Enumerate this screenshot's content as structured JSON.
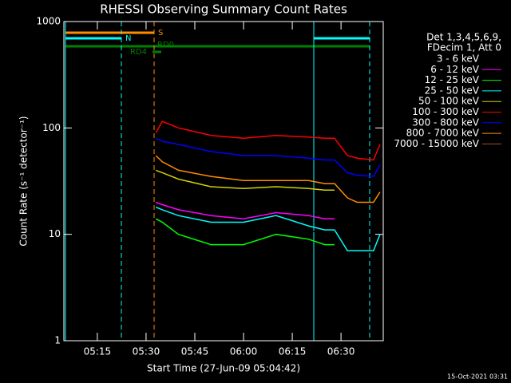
{
  "chart_data": {
    "type": "line",
    "title": "RHESSI Observing Summary Count Rates",
    "x_label": "Start Time (27-Jun-09 05:04:42)",
    "y_label": "Count Rate (s⁻¹ detector⁻¹)",
    "footer": "15-Oct-2021 03:31",
    "legend_header": [
      "Det 1,3,4,5,6,9,",
      "FDecim 1, Att 0"
    ],
    "annotations": [
      "S",
      "N",
      "RD4",
      "RD0"
    ],
    "log_y": true,
    "xlim": [
      304.7,
      403
    ],
    "xticks": [
      {
        "value": 315,
        "label": "05:15"
      },
      {
        "value": 330,
        "label": "05:30"
      },
      {
        "value": 345,
        "label": "05:45"
      },
      {
        "value": 360,
        "label": "06:00"
      },
      {
        "value": 375,
        "label": "06:15"
      },
      {
        "value": 390,
        "label": "06:30"
      }
    ],
    "ylim": [
      1,
      1000
    ],
    "yticks": [
      1,
      10,
      100,
      1000
    ],
    "x": [
      333,
      335,
      340,
      350,
      360,
      370,
      380,
      385,
      388,
      392,
      395,
      400,
      402
    ],
    "series": [
      {
        "name": "3 - 6 keV",
        "color": "#000000",
        "values": [
          16,
          15,
          13,
          11,
          10,
          11,
          11,
          10,
          9,
          null,
          null,
          null,
          null
        ]
      },
      {
        "name": "6 - 12 keV",
        "color": "#ff00ff",
        "values": [
          20,
          19,
          17,
          15,
          14,
          16,
          15,
          14,
          14,
          null,
          null,
          null,
          null
        ]
      },
      {
        "name": "12 - 25 keV",
        "color": "#00ff00",
        "values": [
          14,
          13,
          10,
          8,
          8,
          10,
          9,
          8,
          8,
          null,
          null,
          null,
          null
        ]
      },
      {
        "name": "25 - 50 keV",
        "color": "#00ffff",
        "values": [
          18,
          17,
          15,
          13,
          13,
          15,
          12,
          11,
          11,
          7,
          7,
          7,
          10
        ]
      },
      {
        "name": "50 - 100 keV",
        "color": "#d2d200",
        "values": [
          40,
          38,
          33,
          28,
          27,
          28,
          27,
          26,
          26,
          null,
          null,
          null,
          null
        ]
      },
      {
        "name": "100 - 300 keV",
        "color": "#ff0000",
        "values": [
          90,
          115,
          100,
          85,
          80,
          85,
          82,
          80,
          80,
          55,
          52,
          50,
          70
        ]
      },
      {
        "name": "300 - 800 keV",
        "color": "#0000ff",
        "values": [
          80,
          75,
          70,
          60,
          55,
          55,
          52,
          50,
          50,
          38,
          36,
          35,
          45
        ]
      },
      {
        "name": "800 - 7000 keV",
        "color": "#ff8c00",
        "values": [
          55,
          48,
          40,
          35,
          32,
          32,
          32,
          30,
          30,
          22,
          20,
          20,
          25
        ]
      },
      {
        "name": "7000 - 15000 keV",
        "color": "#a0522d",
        "values": [
          null,
          null,
          null,
          null,
          null,
          null,
          null,
          null,
          null,
          null,
          null,
          null,
          null
        ]
      }
    ]
  }
}
